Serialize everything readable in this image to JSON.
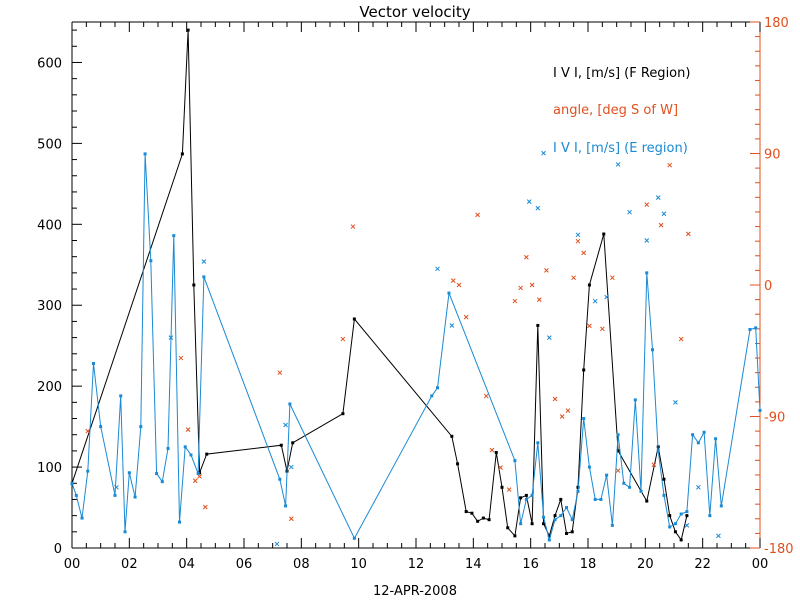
{
  "chart_data": {
    "type": "line",
    "title": "Vector velocity",
    "xlabel": "12-APR-2008",
    "x_ticks": [
      "00",
      "02",
      "04",
      "06",
      "08",
      "10",
      "12",
      "14",
      "16",
      "18",
      "20",
      "22",
      "00"
    ],
    "xlim": [
      0,
      24
    ],
    "ylim": [
      0,
      650
    ],
    "y_ticks": [
      0,
      100,
      200,
      300,
      400,
      500,
      600
    ],
    "y2lim": [
      -180,
      180
    ],
    "y2_ticks": [
      -180,
      -90,
      0,
      90,
      180
    ],
    "legend_placement": "top-right",
    "colors": {
      "f_region": "#000000",
      "angle": "#e0501f",
      "e_region": "#1a8ad4"
    },
    "series": [
      {
        "name": "I V I, [m/s] (F Region)",
        "style": "line-markers",
        "axis": "left",
        "points": [
          [
            0.0,
            80
          ],
          [
            3.85,
            487
          ],
          [
            4.05,
            640
          ],
          [
            4.25,
            325
          ],
          [
            4.45,
            93
          ],
          [
            4.7,
            116
          ],
          [
            7.3,
            127
          ],
          [
            7.5,
            95
          ],
          [
            7.7,
            130
          ],
          [
            9.45,
            166
          ],
          [
            9.85,
            283
          ],
          [
            13.25,
            138
          ],
          [
            13.45,
            104
          ],
          [
            13.75,
            45
          ],
          [
            13.95,
            43
          ],
          [
            14.15,
            33
          ],
          [
            14.35,
            37
          ],
          [
            14.55,
            35
          ],
          [
            14.8,
            118
          ],
          [
            15.0,
            75
          ],
          [
            15.2,
            25
          ],
          [
            15.45,
            15
          ],
          [
            15.65,
            62
          ],
          [
            15.85,
            65
          ],
          [
            16.05,
            30
          ],
          [
            16.25,
            275
          ],
          [
            16.45,
            30
          ],
          [
            16.65,
            15
          ],
          [
            16.85,
            40
          ],
          [
            17.05,
            60
          ],
          [
            17.25,
            18
          ],
          [
            17.45,
            20
          ],
          [
            17.65,
            75
          ],
          [
            17.85,
            220
          ],
          [
            18.05,
            325
          ],
          [
            18.55,
            388
          ],
          [
            19.05,
            120
          ],
          [
            20.05,
            58
          ],
          [
            20.45,
            125
          ],
          [
            20.65,
            85
          ],
          [
            20.85,
            40
          ],
          [
            21.05,
            20
          ],
          [
            21.25,
            10
          ],
          [
            21.45,
            40
          ]
        ]
      },
      {
        "name": "angle, [deg S of W]",
        "style": "markers",
        "axis": "right",
        "points": [
          [
            0.55,
            -100
          ],
          [
            3.8,
            -50
          ],
          [
            4.05,
            -99
          ],
          [
            4.3,
            -134
          ],
          [
            4.45,
            -131
          ],
          [
            4.65,
            -152
          ],
          [
            7.25,
            -60
          ],
          [
            7.65,
            -160
          ],
          [
            9.45,
            -37
          ],
          [
            9.8,
            40
          ],
          [
            13.3,
            3
          ],
          [
            13.5,
            0
          ],
          [
            13.75,
            -22
          ],
          [
            14.15,
            48
          ],
          [
            14.45,
            -76
          ],
          [
            14.65,
            -113
          ],
          [
            14.95,
            -125
          ],
          [
            15.25,
            -140
          ],
          [
            15.45,
            -11
          ],
          [
            15.65,
            -2
          ],
          [
            15.85,
            19
          ],
          [
            16.05,
            0
          ],
          [
            16.3,
            -10
          ],
          [
            16.55,
            10
          ],
          [
            16.85,
            -78
          ],
          [
            17.1,
            -90
          ],
          [
            17.3,
            -86
          ],
          [
            17.5,
            5
          ],
          [
            17.65,
            30
          ],
          [
            17.85,
            22
          ],
          [
            18.05,
            -28
          ],
          [
            18.5,
            -30
          ],
          [
            18.85,
            5
          ],
          [
            19.05,
            -127
          ],
          [
            20.05,
            55
          ],
          [
            20.3,
            -123
          ],
          [
            20.55,
            41
          ],
          [
            20.85,
            82
          ],
          [
            21.25,
            -37
          ],
          [
            21.5,
            35
          ]
        ]
      },
      {
        "name": "I V I, [m/s] (E region)",
        "style": "line-markers",
        "axis": "left",
        "points": [
          [
            0.0,
            80
          ],
          [
            0.15,
            65
          ],
          [
            0.35,
            37
          ],
          [
            0.55,
            95
          ],
          [
            0.75,
            228
          ],
          [
            1.0,
            150
          ],
          [
            1.5,
            65
          ],
          [
            1.7,
            188
          ],
          [
            1.85,
            20
          ],
          [
            2.0,
            93
          ],
          [
            2.2,
            63
          ],
          [
            2.4,
            150
          ],
          [
            2.55,
            487
          ],
          [
            2.75,
            355
          ],
          [
            2.95,
            92
          ],
          [
            3.15,
            82
          ],
          [
            3.35,
            123
          ],
          [
            3.55,
            386
          ],
          [
            3.75,
            32
          ],
          [
            3.95,
            125
          ],
          [
            4.15,
            115
          ],
          [
            4.4,
            92
          ],
          [
            4.6,
            335
          ],
          [
            7.25,
            85
          ],
          [
            7.45,
            52
          ],
          [
            7.6,
            178
          ],
          [
            9.85,
            12
          ],
          [
            12.55,
            188
          ],
          [
            12.75,
            198
          ],
          [
            13.15,
            315
          ],
          [
            15.45,
            108
          ],
          [
            15.65,
            30
          ],
          [
            15.85,
            60
          ],
          [
            16.05,
            65
          ],
          [
            16.25,
            130
          ],
          [
            16.45,
            38
          ],
          [
            16.65,
            10
          ],
          [
            16.85,
            35
          ],
          [
            17.05,
            40
          ],
          [
            17.25,
            50
          ],
          [
            17.45,
            35
          ],
          [
            17.65,
            70
          ],
          [
            17.85,
            160
          ],
          [
            18.05,
            100
          ],
          [
            18.25,
            60
          ],
          [
            18.45,
            60
          ],
          [
            18.65,
            90
          ],
          [
            18.85,
            28
          ],
          [
            19.05,
            140
          ],
          [
            19.25,
            80
          ],
          [
            19.45,
            75
          ],
          [
            19.65,
            183
          ],
          [
            19.85,
            70
          ],
          [
            20.05,
            340
          ],
          [
            20.25,
            245
          ],
          [
            20.45,
            120
          ],
          [
            20.65,
            65
          ],
          [
            20.85,
            26
          ],
          [
            21.05,
            30
          ],
          [
            21.25,
            42
          ],
          [
            21.45,
            45
          ],
          [
            21.65,
            140
          ],
          [
            21.85,
            130
          ],
          [
            22.05,
            143
          ],
          [
            22.25,
            40
          ],
          [
            22.45,
            135
          ],
          [
            22.65,
            52
          ],
          [
            23.65,
            270
          ],
          [
            23.85,
            272
          ],
          [
            24.0,
            170
          ]
        ]
      },
      {
        "name": "",
        "style": "markers",
        "axis": "left",
        "color": "e_region",
        "points": [
          [
            1.55,
            75
          ],
          [
            3.45,
            260
          ],
          [
            4.6,
            354
          ],
          [
            7.15,
            5
          ],
          [
            7.45,
            152
          ],
          [
            7.65,
            100
          ],
          [
            12.75,
            345
          ],
          [
            13.25,
            275
          ],
          [
            15.95,
            428
          ],
          [
            16.25,
            420
          ],
          [
            16.45,
            488
          ],
          [
            16.65,
            260
          ],
          [
            17.65,
            387
          ],
          [
            18.25,
            305
          ],
          [
            18.65,
            310
          ],
          [
            19.05,
            474
          ],
          [
            19.45,
            415
          ],
          [
            20.05,
            380
          ],
          [
            20.45,
            433
          ],
          [
            20.65,
            413
          ],
          [
            21.05,
            180
          ],
          [
            21.45,
            28
          ],
          [
            21.85,
            75
          ],
          [
            22.55,
            15
          ]
        ]
      }
    ]
  }
}
